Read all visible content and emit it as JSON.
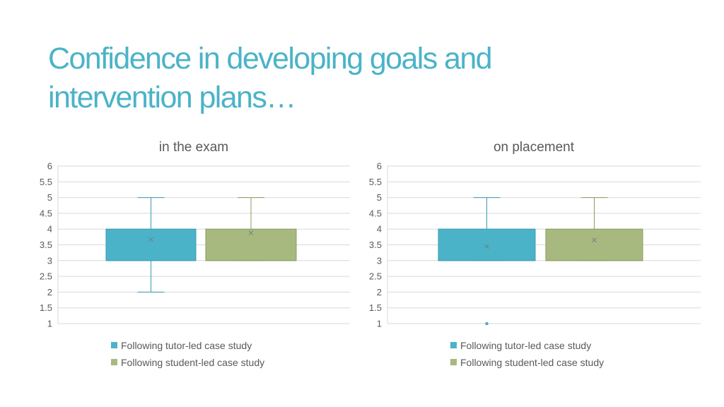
{
  "slide": {
    "title": "Confidence in developing goals and intervention plans…"
  },
  "colors": {
    "title": "#4bb3c8",
    "series_1": "#4bb3c8",
    "series_1_stroke": "#3a9bb0",
    "series_2": "#a7b97e",
    "series_2_stroke": "#8a9c62"
  },
  "chart_data": [
    {
      "type": "box",
      "title": "in the exam",
      "ylim": [
        1,
        6
      ],
      "yticks": [
        "1",
        "1.5",
        "2",
        "2.5",
        "3",
        "3.5",
        "4",
        "4.5",
        "5",
        "5.5",
        "6"
      ],
      "grid": true,
      "legend_position": "bottom",
      "series": [
        {
          "name": "Following tutor-led case study",
          "min": 2,
          "q1": 3,
          "median": 3,
          "q3": 4,
          "max": 5,
          "mean": 3.67,
          "outliers": []
        },
        {
          "name": "Following student-led case study",
          "min": 3,
          "q1": 3,
          "median": 3,
          "q3": 4,
          "max": 5,
          "mean": 3.88,
          "outliers": []
        }
      ]
    },
    {
      "type": "box",
      "title": "on placement",
      "ylim": [
        1,
        6
      ],
      "yticks": [
        "1",
        "1.5",
        "2",
        "2.5",
        "3",
        "3.5",
        "4",
        "4.5",
        "5",
        "5.5",
        "6"
      ],
      "grid": true,
      "legend_position": "bottom",
      "series": [
        {
          "name": "Following tutor-led case study",
          "min": 3,
          "q1": 3,
          "median": 3,
          "q3": 4,
          "max": 5,
          "mean": 3.45,
          "outliers": [
            1
          ]
        },
        {
          "name": "Following student-led case study",
          "min": 3,
          "q1": 3,
          "median": 3,
          "q3": 4,
          "max": 5,
          "mean": 3.65,
          "outliers": []
        }
      ]
    }
  ]
}
